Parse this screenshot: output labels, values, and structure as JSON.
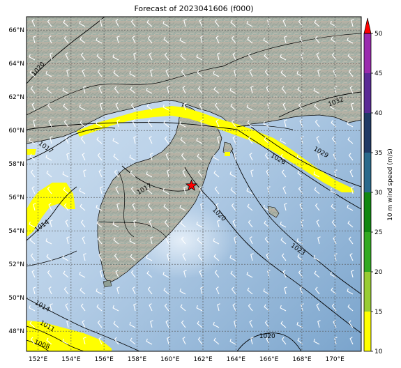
{
  "title": "Forecast of 2023041606 (f000)",
  "colors": {
    "ocean_light": "#cfe0f0",
    "ocean_mid": "#9ebfdc",
    "ocean_deep": "#7ea8cf",
    "land": "#a7b4a8",
    "land_high": "#c9b3a2",
    "wind_highlight": "#ffff00",
    "coast": "#000000",
    "grid": "#555555"
  },
  "map_extent": {
    "lon": [
      151.3,
      171.6
    ],
    "lat": [
      46.8,
      66.8
    ]
  },
  "lon_ticks": [
    "152°E",
    "154°E",
    "156°E",
    "158°E",
    "160°E",
    "162°E",
    "164°E",
    "166°E",
    "168°E",
    "170°E"
  ],
  "lat_ticks": [
    "48°N",
    "50°N",
    "52°N",
    "54°N",
    "56°N",
    "58°N",
    "60°N",
    "62°N",
    "64°N",
    "66°N"
  ],
  "isobar_labels": [
    {
      "text": "1020",
      "lon": 152.1,
      "lat": 63.6,
      "angle": -50
    },
    {
      "text": "1017",
      "lon": 152.4,
      "lat": 58.9,
      "angle": 35
    },
    {
      "text": "1014",
      "lon": 152.3,
      "lat": 54.2,
      "angle": -35
    },
    {
      "text": "1014",
      "lon": 152.2,
      "lat": 49.4,
      "angle": 30
    },
    {
      "text": "1011",
      "lon": 152.5,
      "lat": 48.2,
      "angle": 30
    },
    {
      "text": "1008",
      "lon": 152.2,
      "lat": 47.1,
      "angle": 20
    },
    {
      "text": "1017",
      "lon": 158.5,
      "lat": 56.4,
      "angle": -30
    },
    {
      "text": "1020",
      "lon": 162.9,
      "lat": 54.9,
      "angle": 45
    },
    {
      "text": "1023",
      "lon": 167.7,
      "lat": 52.8,
      "angle": 35
    },
    {
      "text": "1026",
      "lon": 166.5,
      "lat": 58.2,
      "angle": 30
    },
    {
      "text": "1029",
      "lon": 169.1,
      "lat": 58.6,
      "angle": 30
    },
    {
      "text": "1032",
      "lon": 170.1,
      "lat": 61.6,
      "angle": -20
    },
    {
      "text": "1020",
      "lon": 165.9,
      "lat": 47.6,
      "angle": 0
    }
  ],
  "marker": {
    "name": "forecast-point-star",
    "lon": 161.3,
    "lat": 56.7,
    "color": "#ff0000"
  },
  "colorbar": {
    "label": "10 m wind speed (m/s)",
    "ticks": [
      "10",
      "15",
      "20",
      "25",
      "30",
      "35",
      "40",
      "45",
      "50"
    ],
    "range": [
      10,
      50
    ],
    "bins": [
      {
        "from": 10,
        "to": 15,
        "color": "#ffff00"
      },
      {
        "from": 15,
        "to": 20,
        "color": "#99cc33"
      },
      {
        "from": 20,
        "to": 25,
        "color": "#33aa22"
      },
      {
        "from": 25,
        "to": 30,
        "color": "#118811"
      },
      {
        "from": 30,
        "to": 35,
        "color": "#2a6a8c"
      },
      {
        "from": 35,
        "to": 40,
        "color": "#203a66"
      },
      {
        "from": 40,
        "to": 45,
        "color": "#5a2a96"
      },
      {
        "from": 45,
        "to": 50,
        "color": "#9a2aae"
      }
    ],
    "extend_color": "#ff0000"
  }
}
